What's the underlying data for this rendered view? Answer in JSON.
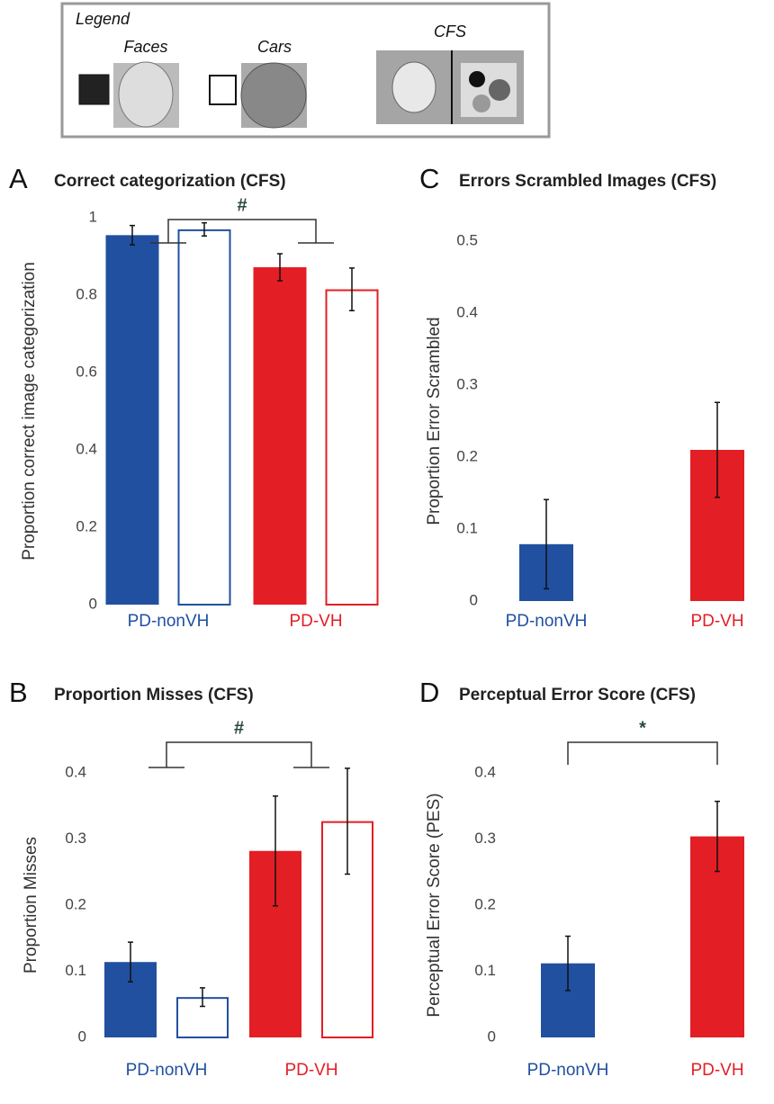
{
  "legend": {
    "title": "Legend",
    "faces": "Faces",
    "cars": "Cars",
    "cfs": "CFS"
  },
  "chart_data": [
    {
      "type": "bar",
      "panel": "A",
      "title": "Correct categorization (CFS)",
      "ylabel": "Proportion correct image categorization",
      "categories": [
        "PD-nonVH",
        "PD-VH"
      ],
      "category_colors": [
        "#2150a0",
        "#e31e24"
      ],
      "series": [
        {
          "style": "filled",
          "values": [
            0.955,
            0.872
          ],
          "errors": [
            0.025,
            0.035
          ]
        },
        {
          "style": "hollow",
          "values": [
            0.97,
            0.815
          ],
          "errors": [
            0.017,
            0.055
          ]
        }
      ],
      "ylim": [
        0,
        1
      ],
      "yticks": [
        0,
        0.2,
        0.4,
        0.6,
        0.8,
        1
      ],
      "annotation": "#"
    },
    {
      "type": "bar",
      "panel": "B",
      "title": "Proportion Misses (CFS)",
      "ylabel": "Proportion Misses",
      "categories": [
        "PD-nonVH",
        "PD-VH"
      ],
      "category_colors": [
        "#2150a0",
        "#e31e24"
      ],
      "series": [
        {
          "style": "filled",
          "values": [
            0.114,
            0.282
          ],
          "errors": [
            0.03,
            0.083
          ]
        },
        {
          "style": "hollow",
          "values": [
            0.061,
            0.327
          ],
          "errors": [
            0.014,
            0.08
          ]
        }
      ],
      "ylim": [
        0,
        0.4
      ],
      "yticks": [
        0,
        0.1,
        0.2,
        0.3,
        0.4
      ],
      "annotation": "#"
    },
    {
      "type": "bar",
      "panel": "C",
      "title": "Errors Scrambled Images (CFS)",
      "ylabel": "Proportion Error Scrambled",
      "categories": [
        "PD-nonVH",
        "PD-VH"
      ],
      "category_colors": [
        "#2150a0",
        "#e31e24"
      ],
      "series": [
        {
          "style": "filled",
          "values": [
            0.079,
            0.21
          ],
          "errors": [
            0.062,
            0.066
          ]
        }
      ],
      "ylim": [
        0,
        0.5
      ],
      "yticks": [
        0,
        0.1,
        0.2,
        0.3,
        0.4,
        0.5
      ]
    },
    {
      "type": "bar",
      "panel": "D",
      "title": "Perceptual Error Score (CFS)",
      "ylabel": "Perceptual Error Score (PES)",
      "categories": [
        "PD-nonVH",
        "PD-VH"
      ],
      "category_colors": [
        "#2150a0",
        "#e31e24"
      ],
      "series": [
        {
          "style": "filled",
          "values": [
            0.112,
            0.304
          ],
          "errors": [
            0.041,
            0.053
          ]
        }
      ],
      "ylim": [
        0,
        0.4
      ],
      "yticks": [
        0,
        0.1,
        0.2,
        0.3,
        0.4
      ],
      "annotation": "*"
    }
  ]
}
